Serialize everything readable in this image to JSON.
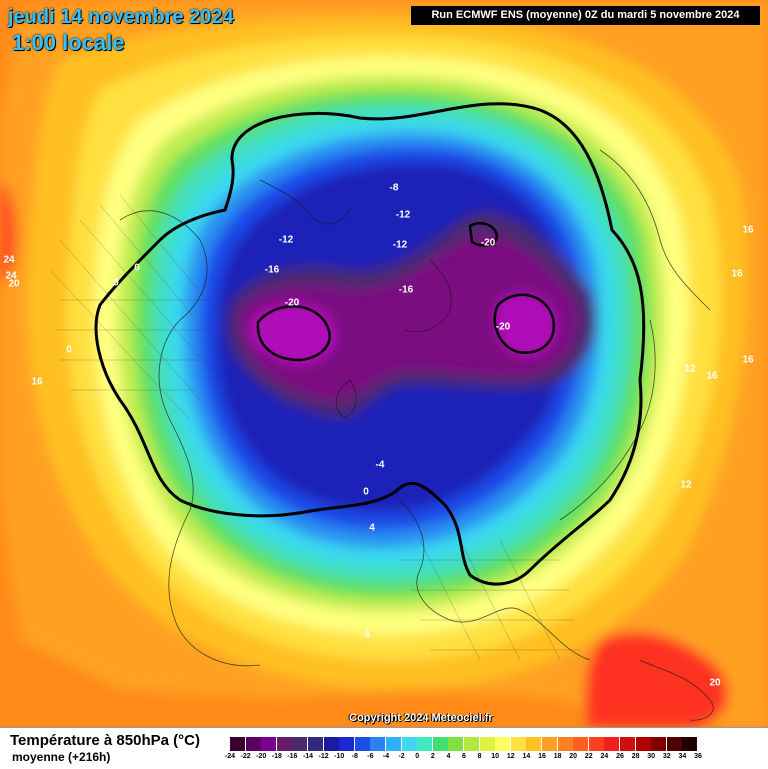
{
  "header": {
    "date": "jeudi 14 novembre 2024",
    "time": "1:00 locale",
    "run": "Run ECMWF ENS (moyenne) 0Z du mardi 5 novembre 2024"
  },
  "copyright": "Copyright 2024 Meteociel.fr",
  "footer": {
    "title": "Température à 850hPa (°C)",
    "subtitle": "moyenne  (+216h)"
  },
  "map_labels": [
    {
      "text": "-8"
    },
    {
      "text": "-12"
    },
    {
      "text": "-12"
    },
    {
      "text": "-12"
    },
    {
      "text": "-20"
    },
    {
      "text": "-16"
    },
    {
      "text": "-16"
    },
    {
      "text": "-20"
    },
    {
      "text": "-20"
    },
    {
      "text": "-4"
    },
    {
      "text": "0"
    },
    {
      "text": "4"
    },
    {
      "text": "4"
    },
    {
      "text": "0"
    },
    {
      "text": "0"
    },
    {
      "text": "0"
    },
    {
      "text": "16"
    },
    {
      "text": "16"
    },
    {
      "text": "16"
    },
    {
      "text": "16"
    },
    {
      "text": "16"
    },
    {
      "text": "12"
    },
    {
      "text": "12"
    },
    {
      "text": "24"
    },
    {
      "text": "24"
    },
    {
      "text": "20"
    },
    {
      "text": "20"
    }
  ],
  "legend": {
    "ticks": [
      "-24",
      "-22",
      "-20",
      "-18",
      "-16",
      "-14",
      "-12",
      "-10",
      "-8",
      "-6",
      "-4",
      "-2",
      "0",
      "2",
      "4",
      "6",
      "8",
      "10",
      "12",
      "14",
      "16",
      "18",
      "20",
      "22",
      "24",
      "26",
      "28",
      "30",
      "32",
      "34",
      "36"
    ],
    "colors": [
      "#3a0030",
      "#5a0060",
      "#7a0090",
      "#6a1a6a",
      "#4a2a6a",
      "#302a80",
      "#1a1aa0",
      "#1a2ad0",
      "#1a50e8",
      "#2a80f0",
      "#30b0f8",
      "#40d8f0",
      "#40e8c0",
      "#40e070",
      "#80e040",
      "#b0e840",
      "#e0f040",
      "#ffff60",
      "#ffe040",
      "#ffc020",
      "#ffa020",
      "#ff8020",
      "#ff6020",
      "#ff4020",
      "#f02020",
      "#d01010",
      "#b00000",
      "#800000",
      "#500000",
      "#200000"
    ]
  }
}
